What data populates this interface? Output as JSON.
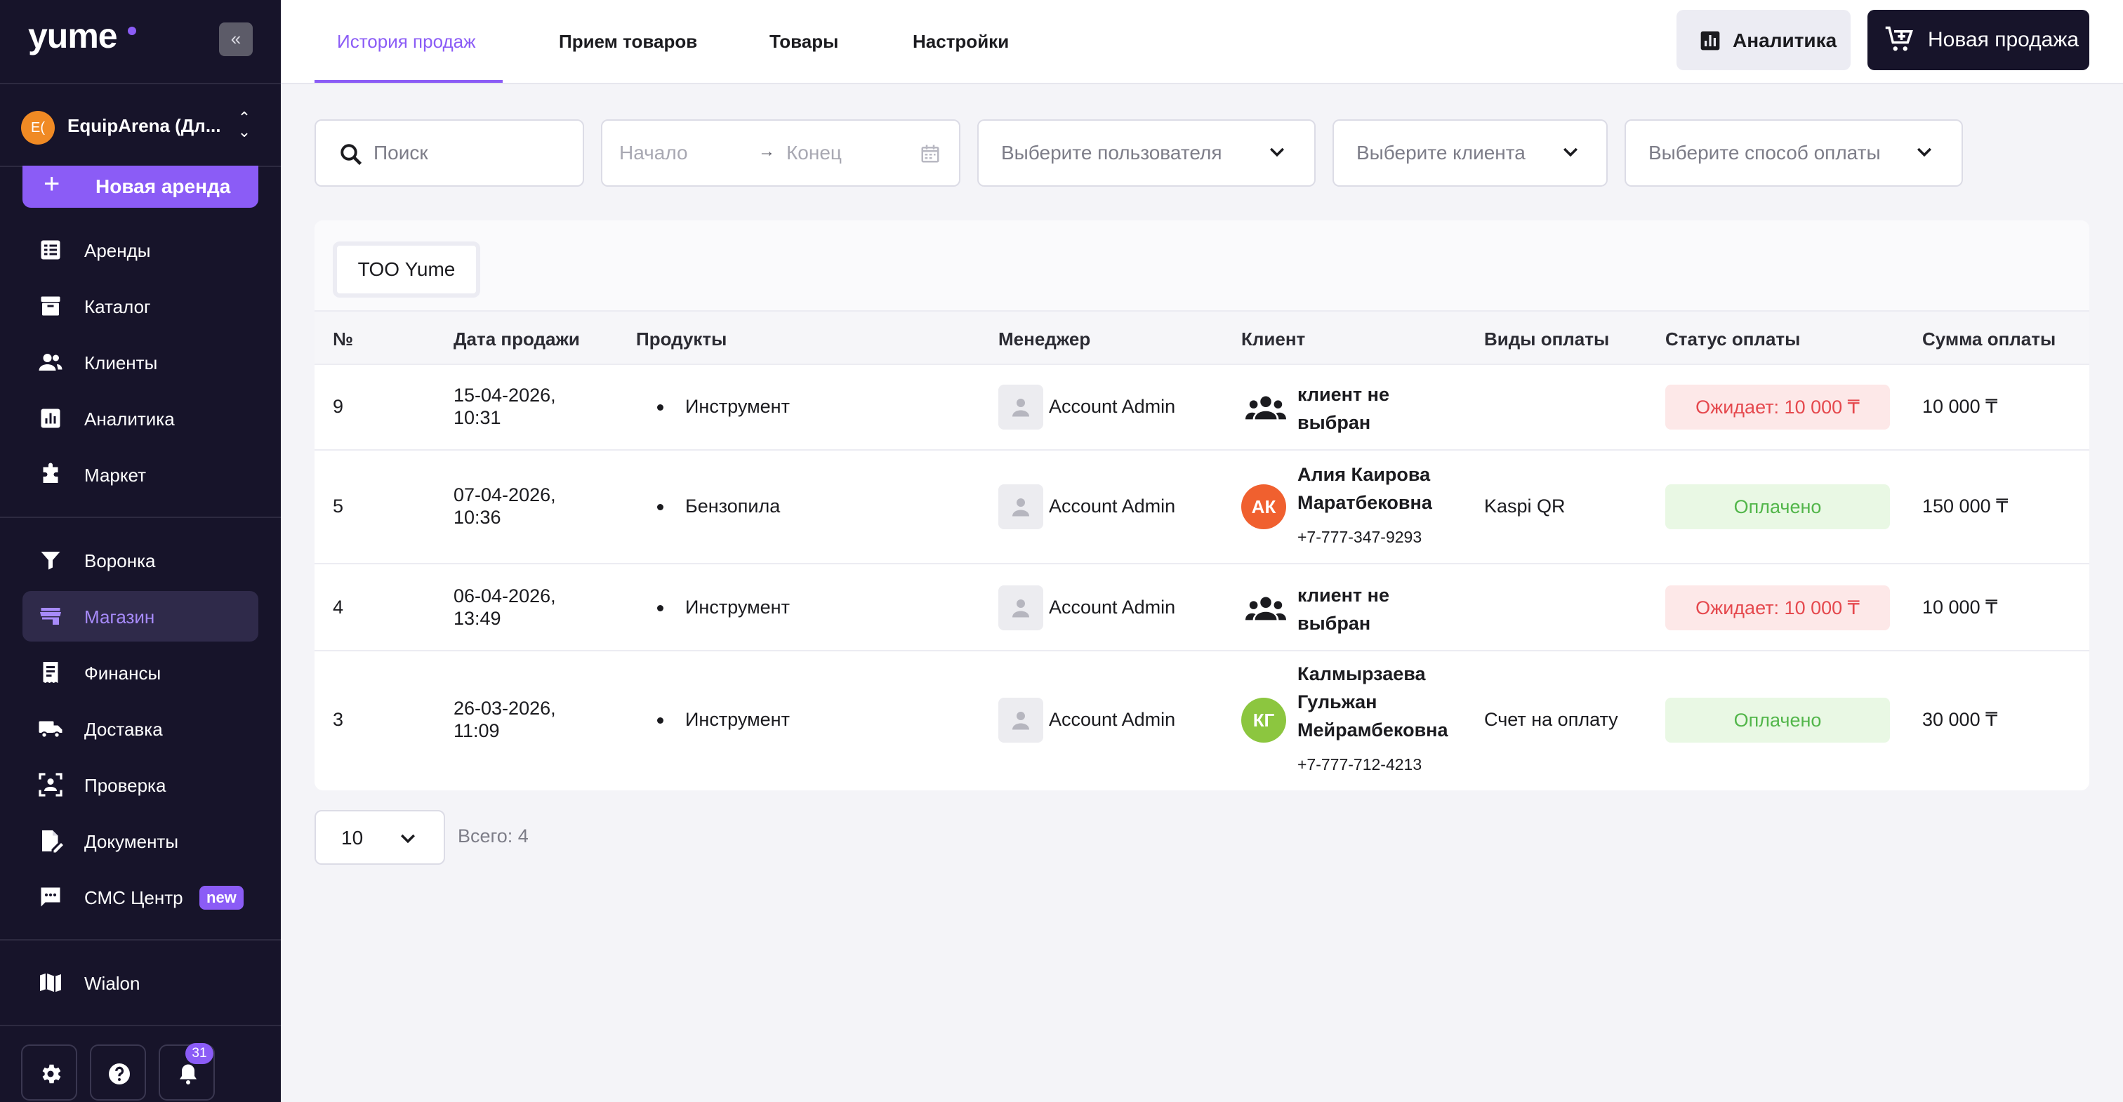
{
  "app": {
    "logo": "yume"
  },
  "account": {
    "initials": "E(",
    "name": "EquipArena (Дл..."
  },
  "sidebar": {
    "new_rent_label": "Новая аренда",
    "items": [
      {
        "label": "Аренды",
        "icon": "list-icon"
      },
      {
        "label": "Каталог",
        "icon": "archive-icon"
      },
      {
        "label": "Клиенты",
        "icon": "users-icon"
      },
      {
        "label": "Аналитика",
        "icon": "chart-icon"
      },
      {
        "label": "Маркет",
        "icon": "puzzle-icon"
      },
      {
        "label": "Воронка",
        "icon": "funnel-icon"
      },
      {
        "label": "Магазин",
        "icon": "store-icon",
        "active": true
      },
      {
        "label": "Финансы",
        "icon": "receipt-icon"
      },
      {
        "label": "Доставка",
        "icon": "truck-icon"
      },
      {
        "label": "Проверка",
        "icon": "face-scan-icon"
      },
      {
        "label": "Документы",
        "icon": "document-edit-icon"
      },
      {
        "label": "СМС Центр",
        "icon": "sms-icon",
        "badge": "new"
      },
      {
        "label": "Wialon",
        "icon": "map-icon"
      }
    ],
    "notifications_count": "31"
  },
  "tabs": [
    {
      "label": "История продаж",
      "active": true
    },
    {
      "label": "Прием товаров"
    },
    {
      "label": "Товары"
    },
    {
      "label": "Настройки"
    }
  ],
  "header": {
    "analytics_label": "Аналитика",
    "new_sale_label": "Новая продажа"
  },
  "filters": {
    "search_placeholder": "Поиск",
    "date_start_placeholder": "Начало",
    "date_end_placeholder": "Конец",
    "user_placeholder": "Выберите пользователя",
    "client_placeholder": "Выберите клиента",
    "payment_placeholder": "Выберите способ оплаты"
  },
  "company_tab": "ТОО Yume",
  "table": {
    "columns": [
      "№",
      "Дата продажи",
      "Продукты",
      "Менеджер",
      "Клиент",
      "Виды оплаты",
      "Статус оплаты",
      "Сумма оплаты"
    ],
    "rows": [
      {
        "num": "9",
        "date_line1": "15-04-2026,",
        "date_line2": "10:31",
        "product": "Инструмент",
        "manager": "Account Admin",
        "client_line1": "клиент не",
        "client_line2": "выбран",
        "payment_type": "",
        "status": "Ожидает: 10 000 ₸",
        "amount": "10 000 ₸"
      },
      {
        "num": "5",
        "date_line1": "07-04-2026,",
        "date_line2": "10:36",
        "product": "Бензопила",
        "manager": "Account Admin",
        "client_initials": "АК",
        "client_line1": "Алия Каирова",
        "client_line2": "Маратбековна",
        "client_phone": "+7-777-347-9293",
        "payment_type": "Kaspi QR",
        "status": "Оплачено",
        "amount": "150 000 ₸"
      },
      {
        "num": "4",
        "date_line1": "06-04-2026,",
        "date_line2": "13:49",
        "product": "Инструмент",
        "manager": "Account Admin",
        "client_line1": "клиент не",
        "client_line2": "выбран",
        "payment_type": "",
        "status": "Ожидает: 10 000 ₸",
        "amount": "10 000 ₸"
      },
      {
        "num": "3",
        "date_line1": "26-03-2026,",
        "date_line2": "11:09",
        "product": "Инструмент",
        "manager": "Account Admin",
        "client_initials": "КГ",
        "client_line1": "Калмырзаева",
        "client_line2": "Гульжан",
        "client_line3": "Мейрамбековна",
        "client_phone": "+7-777-712-4213",
        "payment_type": "Счет на оплату",
        "status": "Оплачено",
        "amount": "30 000 ₸"
      }
    ]
  },
  "pagination": {
    "page_size": "10",
    "total": "Всего: 4"
  },
  "colors": {
    "accent": "#8b5cf6",
    "sidebar_bg": "#17142a",
    "wait": "#e5484d",
    "paid": "#52b64a",
    "avatar_ak": "#f0602f",
    "avatar_kg": "#8cc63f"
  }
}
